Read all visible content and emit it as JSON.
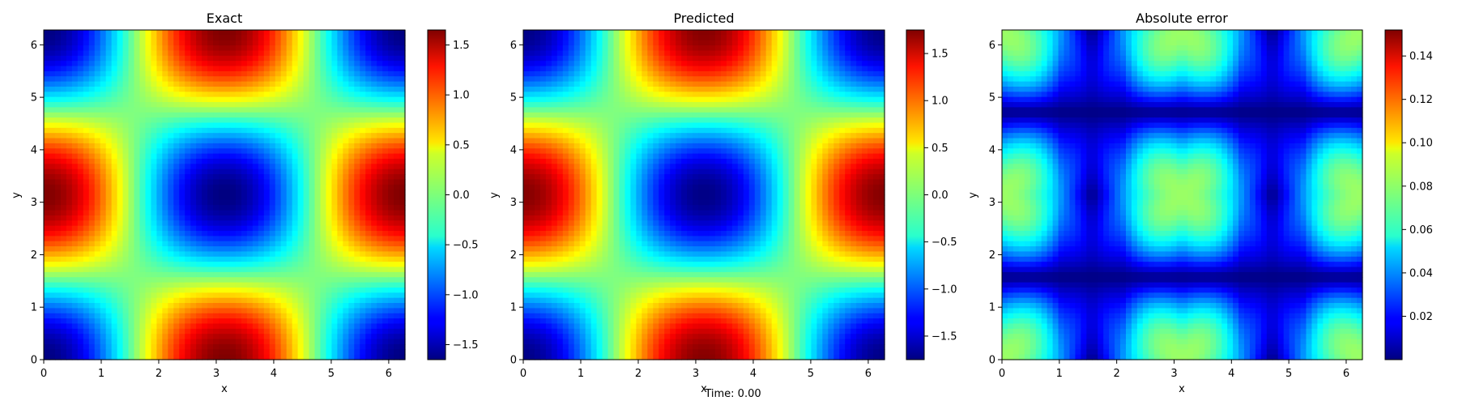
{
  "figure": {
    "footer_text": "Time: 0.00"
  },
  "chart_data": [
    {
      "type": "heatmap",
      "title": "Exact",
      "xlabel": "x",
      "ylabel": "y",
      "xlim": [
        0,
        6.283
      ],
      "ylim": [
        0,
        6.283
      ],
      "xticks": [
        "0",
        "1",
        "2",
        "3",
        "4",
        "5",
        "6"
      ],
      "yticks": [
        "0",
        "1",
        "2",
        "3",
        "4",
        "5",
        "6"
      ],
      "colormap": "jet",
      "field": "-1.65 * cos(x) * cos(y)",
      "color_range": [
        -1.65,
        1.65
      ],
      "colorbar_ticks": [
        "1.5",
        "1.0",
        "0.5",
        "0.0",
        "−0.5",
        "−1.0",
        "−1.5"
      ]
    },
    {
      "type": "heatmap",
      "title": "Predicted",
      "xlabel": "x",
      "ylabel": "y",
      "xlim": [
        0,
        6.283
      ],
      "ylim": [
        0,
        6.283
      ],
      "xticks": [
        "0",
        "1",
        "2",
        "3",
        "4",
        "5",
        "6"
      ],
      "yticks": [
        "0",
        "1",
        "2",
        "3",
        "4",
        "5",
        "6"
      ],
      "colormap": "jet",
      "field": "-1.73 * cos(x) * cos(y)",
      "color_range": [
        -1.75,
        1.75
      ],
      "colorbar_ticks": [
        "1.5",
        "1.0",
        "0.5",
        "0.0",
        "−0.5",
        "−1.0",
        "−1.5"
      ]
    },
    {
      "type": "heatmap",
      "title": "Absolute error",
      "xlabel": "x",
      "ylabel": "y",
      "xlim": [
        0,
        6.283
      ],
      "ylim": [
        0,
        6.283
      ],
      "xticks": [
        "0",
        "1",
        "2",
        "3",
        "4",
        "5",
        "6"
      ],
      "yticks": [
        "0",
        "1",
        "2",
        "3",
        "4",
        "5",
        "6"
      ],
      "colormap": "jet",
      "field": "abs(exact - predicted)",
      "color_range": [
        0.0,
        0.152
      ],
      "colorbar_ticks": [
        "0.14",
        "0.12",
        "0.10",
        "0.08",
        "0.06",
        "0.04",
        "0.02"
      ]
    }
  ]
}
